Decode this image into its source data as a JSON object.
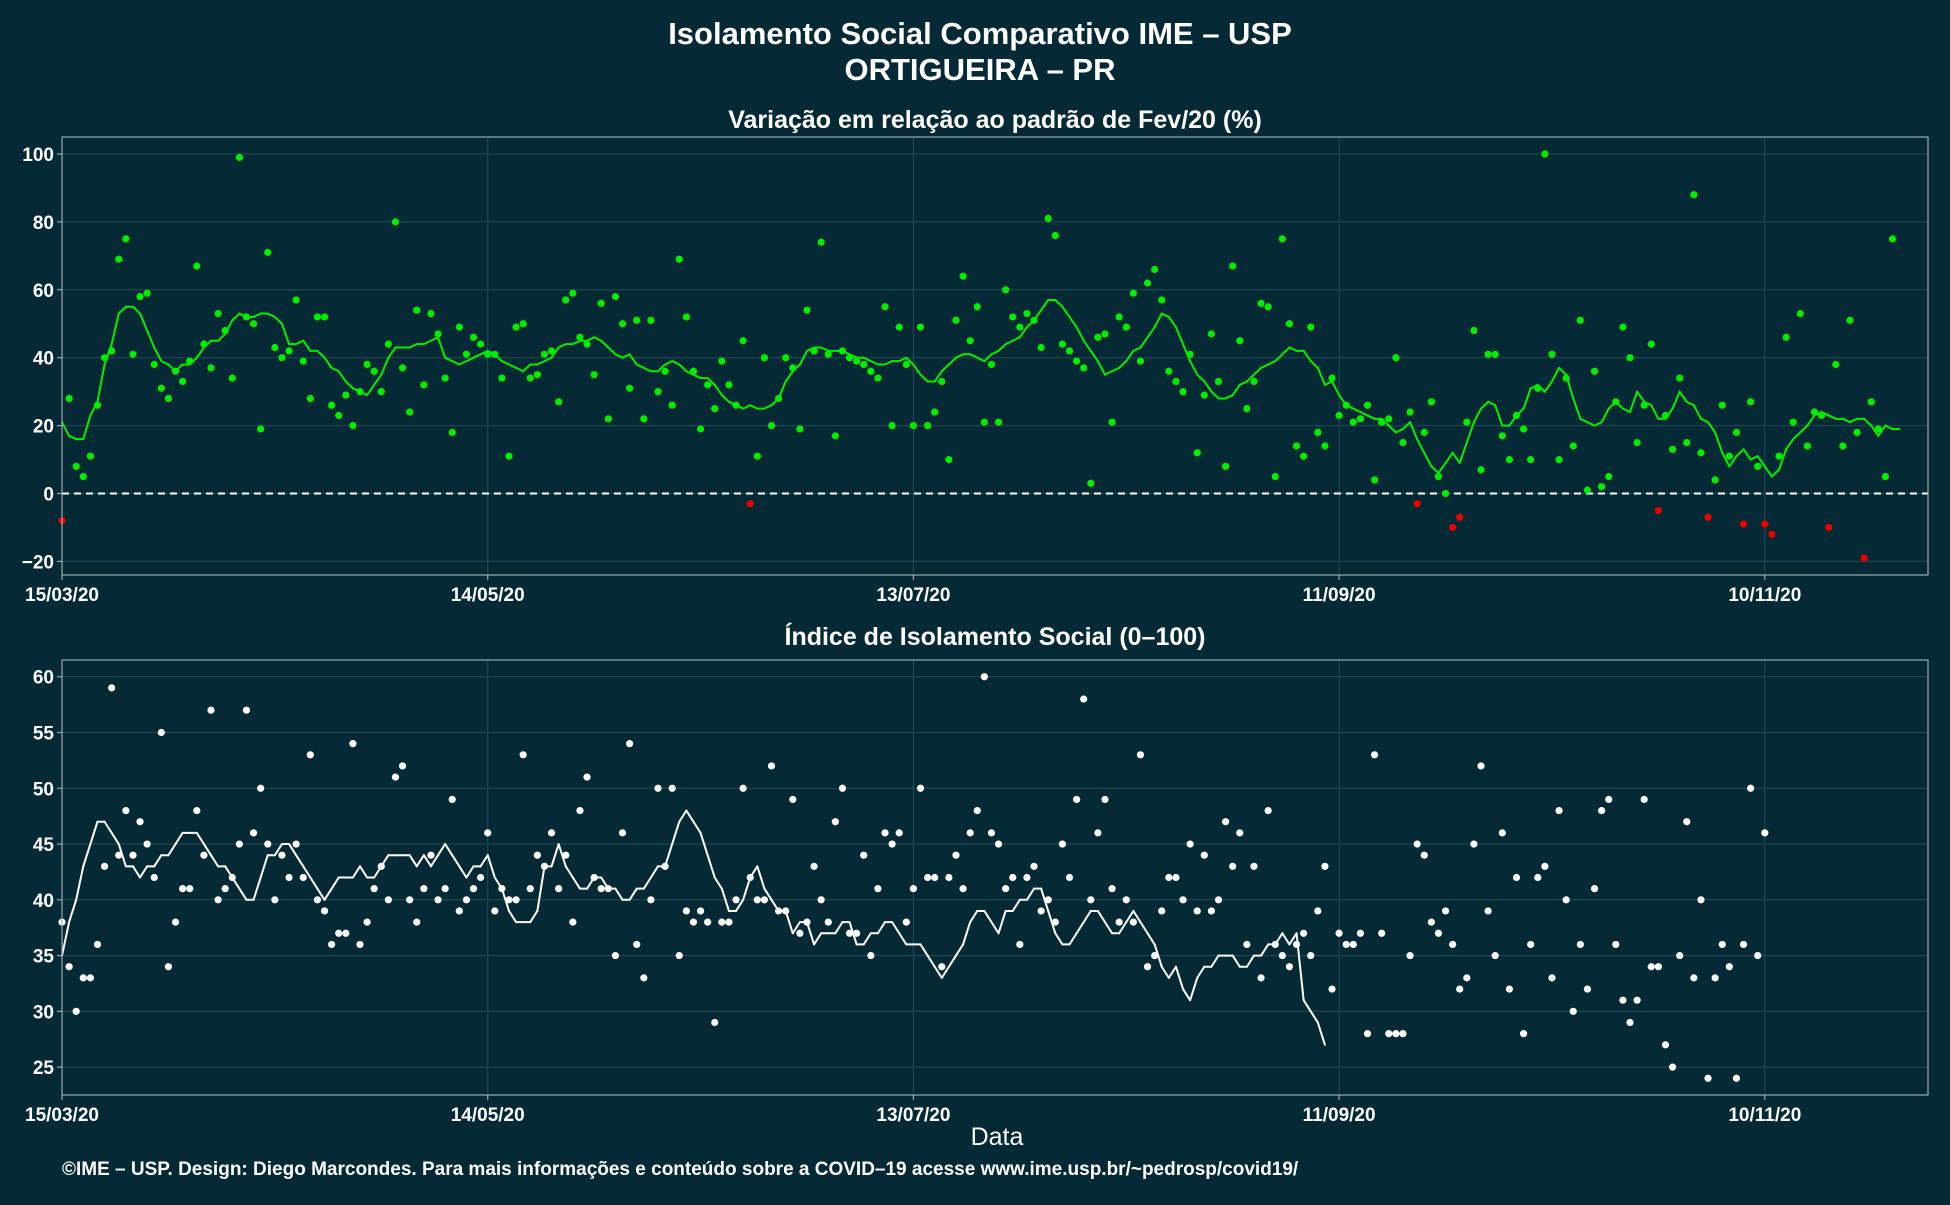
{
  "title": "Isolamento Social Comparativo IME – USP",
  "subtitle": "ORTIGUEIRA – PR",
  "caption": "©IME – USP. Design: Diego Marcondes. Para mais informações e conteúdo sobre a COVID–19 acesse www.ime.usp.br/~pedrosp/covid19/",
  "colors": {
    "background": "#052a35",
    "positive": "#00ee00",
    "negative": "#ee0000",
    "white": "#ffffff",
    "grid": "#234a57",
    "frame": "#9aaab0"
  },
  "chart_data": [
    {
      "type": "scatter",
      "title": "Variação em relação ao padrão de Fev/20 (%)",
      "xlabel": "",
      "ylabel": "",
      "x_tick_labels": [
        "15/03/20",
        "14/05/20",
        "13/07/20",
        "11/09/20",
        "10/11/20"
      ],
      "x_tick_days": [
        0,
        60,
        120,
        180,
        240
      ],
      "x_range_days": [
        0,
        263
      ],
      "ylim": [
        -24,
        105
      ],
      "y_ticks": [
        100,
        80,
        60,
        40,
        20,
        0,
        -20
      ],
      "y_tick_labels": [
        "100",
        "80",
        "60",
        "40",
        "20",
        "0",
        "−20"
      ],
      "reference_line": 0,
      "series": [
        {
          "kind": "daily-points",
          "values": [
            -8,
            28,
            8,
            5,
            11,
            26,
            40,
            42,
            69,
            75,
            41,
            58,
            59,
            38,
            31,
            28,
            36,
            33,
            39,
            67,
            44,
            37,
            53,
            48,
            34,
            99,
            52,
            50,
            19,
            71,
            43,
            40,
            42,
            57,
            39,
            28,
            52,
            52,
            26,
            23,
            29,
            20,
            30,
            38,
            36,
            30,
            44,
            80,
            37,
            24,
            54,
            32,
            53,
            47,
            34,
            18,
            49,
            41,
            46,
            44,
            41,
            41,
            34,
            11,
            49,
            50,
            34,
            35,
            41,
            42,
            27,
            57,
            59,
            46,
            44,
            35,
            56,
            22,
            58,
            50,
            31,
            51,
            22,
            51,
            30,
            36,
            26,
            69,
            52,
            36,
            19,
            32,
            25,
            39,
            32,
            26,
            45,
            -3,
            11,
            40,
            20,
            28,
            40,
            37,
            19,
            54,
            42,
            74,
            41,
            17,
            42,
            40,
            39,
            38,
            36,
            34,
            55,
            20,
            49,
            38,
            20,
            49,
            20,
            24,
            33,
            10,
            51,
            64,
            45,
            55,
            21,
            38,
            21,
            60,
            52,
            49,
            53,
            51,
            43,
            81,
            76,
            44,
            42,
            39,
            37,
            3,
            46,
            47,
            21,
            52,
            49,
            59,
            39,
            62,
            66,
            57,
            36,
            33,
            30,
            41,
            12,
            29,
            47,
            33,
            8,
            67,
            45,
            25,
            33,
            56,
            55,
            5,
            75,
            50,
            14,
            11,
            49,
            18,
            14,
            34,
            23,
            26,
            21,
            22,
            26,
            4,
            21,
            22,
            40,
            15,
            24,
            -3,
            18,
            27,
            5,
            0,
            -10,
            -7,
            21,
            48,
            7,
            41,
            41,
            17,
            10,
            23,
            19,
            10,
            31,
            100,
            41,
            10,
            34,
            14,
            51,
            1,
            36,
            2,
            5,
            27,
            49,
            40,
            15,
            26,
            44,
            -5,
            23,
            13,
            34,
            15,
            88,
            12,
            -7,
            4,
            26,
            11,
            18,
            -9,
            27,
            8,
            -9,
            -12,
            11,
            46,
            21,
            53,
            14,
            24,
            23,
            -10,
            38,
            14,
            51,
            18,
            -19,
            27,
            19,
            5,
            75
          ]
        },
        {
          "kind": "moving-average",
          "values": [
            21,
            17,
            16,
            16,
            23,
            27,
            38,
            44,
            53,
            55,
            55,
            53,
            48,
            43,
            39,
            38,
            36,
            38,
            38,
            40,
            43,
            45,
            45,
            47,
            51,
            53,
            52,
            52,
            53,
            53,
            52,
            50,
            44,
            44,
            45,
            42,
            42,
            40,
            37,
            36,
            33,
            31,
            30,
            29,
            32,
            35,
            40,
            43,
            43,
            43,
            44,
            44,
            45,
            46,
            40,
            39,
            38,
            39,
            40,
            41,
            42,
            41,
            39,
            38,
            37,
            36,
            38,
            38,
            39,
            40,
            43,
            44,
            44,
            45,
            45,
            46,
            45,
            43,
            41,
            40,
            41,
            38,
            37,
            36,
            36,
            38,
            39,
            38,
            36,
            35,
            34,
            34,
            32,
            29,
            27,
            26,
            25,
            26,
            25,
            25,
            26,
            28,
            33,
            36,
            38,
            42,
            43,
            43,
            42,
            42,
            42,
            41,
            40,
            40,
            39,
            38,
            38,
            39,
            39,
            40,
            38,
            35,
            33,
            33,
            36,
            38,
            40,
            41,
            41,
            40,
            39,
            41,
            42,
            44,
            45,
            46,
            49,
            51,
            54,
            57,
            57,
            55,
            52,
            49,
            45,
            42,
            39,
            35,
            36,
            37,
            39,
            42,
            43,
            46,
            49,
            53,
            52,
            49,
            44,
            39,
            35,
            33,
            30,
            28,
            28,
            29,
            32,
            33,
            35,
            37,
            38,
            39,
            41,
            43,
            42,
            42,
            39,
            37,
            32,
            33,
            29,
            26,
            25,
            24,
            23,
            22,
            22,
            20,
            18,
            19,
            21,
            16,
            12,
            8,
            6,
            9,
            12,
            9,
            15,
            21,
            25,
            27,
            26,
            20,
            20,
            23,
            25,
            31,
            32,
            30,
            33,
            37,
            35,
            28,
            22,
            21,
            20,
            21,
            25,
            27,
            25,
            24,
            30,
            27,
            26,
            22,
            22,
            25,
            30,
            27,
            26,
            22,
            21,
            18,
            12,
            8,
            11,
            13,
            10,
            11,
            8,
            5,
            7,
            13,
            16,
            18,
            20,
            23,
            24,
            23,
            22,
            22,
            21,
            22,
            22,
            20,
            17,
            20,
            19,
            19
          ]
        }
      ]
    },
    {
      "type": "scatter",
      "title": "Índice de Isolamento Social (0–100)",
      "xlabel": "Data",
      "ylabel": "",
      "x_tick_labels": [
        "15/03/20",
        "14/05/20",
        "13/07/20",
        "11/09/20",
        "10/11/20"
      ],
      "x_tick_days": [
        0,
        60,
        120,
        180,
        240
      ],
      "x_range_days": [
        0,
        263
      ],
      "ylim": [
        22.5,
        61.5
      ],
      "y_ticks": [
        60,
        55,
        50,
        45,
        40,
        35,
        30,
        25
      ],
      "y_tick_labels": [
        "60",
        "55",
        "50",
        "45",
        "40",
        "35",
        "30",
        "25"
      ],
      "series": [
        {
          "kind": "daily-points",
          "values": [
            38,
            34,
            30,
            33,
            33,
            36,
            43,
            59,
            44,
            48,
            44,
            47,
            45,
            42,
            55,
            34,
            38,
            41,
            41,
            48,
            44,
            57,
            40,
            41,
            42,
            45,
            57,
            46,
            50,
            45,
            40,
            44,
            42,
            45,
            42,
            53,
            40,
            39,
            36,
            37,
            37,
            54,
            36,
            38,
            41,
            43,
            40,
            51,
            52,
            40,
            38,
            41,
            44,
            40,
            41,
            49,
            39,
            40,
            41,
            42,
            46,
            39,
            41,
            40,
            40,
            53,
            41,
            44,
            43,
            46,
            41,
            44,
            38,
            48,
            51,
            42,
            41,
            41,
            35,
            46,
            54,
            36,
            33,
            40,
            50,
            43,
            50,
            35,
            39,
            38,
            39,
            38,
            29,
            38,
            38,
            40,
            50,
            42,
            40,
            40,
            52,
            39,
            39,
            49,
            37,
            38,
            43,
            40,
            38,
            47,
            50,
            37,
            37,
            44,
            35,
            41,
            46,
            45,
            46,
            38,
            41,
            50,
            42,
            42,
            34,
            42,
            44,
            41,
            46,
            48,
            60,
            46,
            45,
            41,
            42,
            36,
            42,
            43,
            39,
            40,
            38,
            45,
            42,
            49,
            58,
            40,
            46,
            49,
            41,
            38,
            40,
            38,
            53,
            34,
            35,
            39,
            42,
            42,
            40,
            45,
            39,
            44,
            39,
            40,
            47,
            43,
            46,
            36,
            43,
            33,
            48,
            36,
            35,
            34,
            36,
            37,
            35,
            39,
            43,
            32,
            37,
            36,
            36,
            37,
            28,
            53,
            37,
            28,
            28,
            28,
            35,
            45,
            44,
            38,
            37,
            39,
            36,
            32,
            33,
            45,
            52,
            39,
            35,
            46,
            32,
            42,
            28,
            36,
            42,
            43,
            33,
            48,
            40,
            30,
            36,
            32,
            41,
            48,
            49,
            36,
            31,
            29,
            31,
            49,
            34,
            34,
            27,
            25,
            35,
            47,
            33,
            40,
            24,
            33,
            36,
            34,
            24,
            36,
            50,
            35,
            46
          ]
        },
        {
          "kind": "moving-average",
          "values": [
            35,
            38,
            40,
            43,
            45,
            47,
            47,
            46,
            45,
            43,
            43,
            42,
            43,
            43,
            44,
            44,
            45,
            46,
            46,
            46,
            45,
            44,
            43,
            43,
            42,
            41,
            40,
            40,
            42,
            44,
            44,
            45,
            45,
            44,
            43,
            42,
            41,
            40,
            41,
            42,
            42,
            42,
            43,
            42,
            42,
            43,
            44,
            44,
            44,
            44,
            43,
            44,
            43,
            44,
            45,
            44,
            43,
            42,
            43,
            43,
            44,
            42,
            41,
            39,
            38,
            38,
            38,
            39,
            43,
            43,
            45,
            43,
            42,
            41,
            41,
            42,
            42,
            41,
            41,
            40,
            40,
            41,
            41,
            42,
            43,
            43,
            45,
            47,
            48,
            47,
            46,
            44,
            42,
            41,
            39,
            39,
            40,
            42,
            43,
            41,
            40,
            39,
            39,
            37,
            38,
            38,
            36,
            37,
            37,
            37,
            38,
            38,
            36,
            36,
            37,
            37,
            38,
            38,
            37,
            36,
            36,
            36,
            35,
            34,
            33,
            34,
            35,
            36,
            38,
            39,
            39,
            38,
            37,
            39,
            39,
            40,
            40,
            41,
            41,
            39,
            37,
            36,
            36,
            37,
            38,
            39,
            39,
            38,
            37,
            37,
            38,
            39,
            38,
            37,
            36,
            34,
            33,
            34,
            32,
            31,
            33,
            34,
            34,
            35,
            35,
            35,
            34,
            34,
            35,
            35,
            36,
            36,
            37,
            36,
            37,
            31,
            30,
            29,
            27
          ]
        }
      ]
    }
  ]
}
